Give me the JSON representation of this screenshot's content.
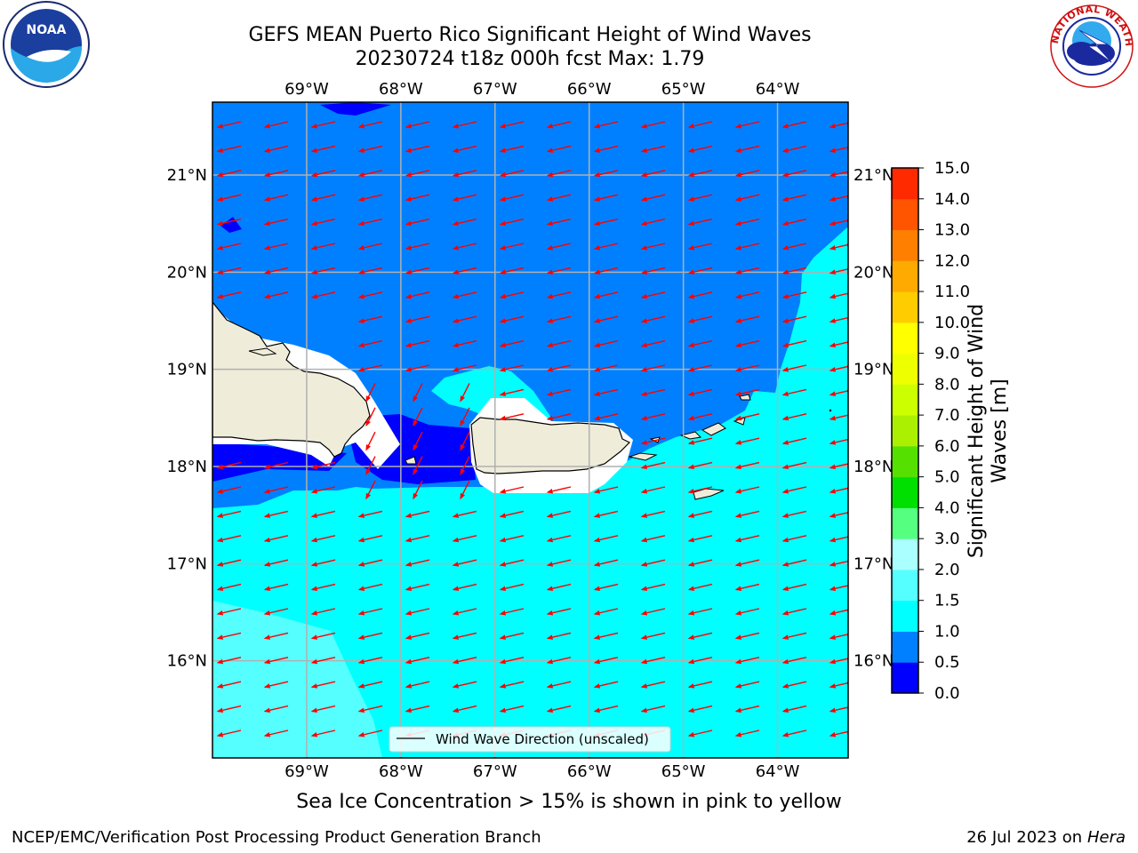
{
  "title": {
    "line1": "GEFS MEAN Puerto Rico Significant Height of Wind Waves",
    "line2": "20230724 t18z 000h fcst   Max: 1.79"
  },
  "map": {
    "lon_range": [
      -70.0,
      -63.25
    ],
    "lat_range": [
      15.0,
      21.75
    ],
    "lon_ticks": [
      {
        "value": -69,
        "label": "69°W"
      },
      {
        "value": -68,
        "label": "68°W"
      },
      {
        "value": -67,
        "label": "67°W"
      },
      {
        "value": -66,
        "label": "66°W"
      },
      {
        "value": -65,
        "label": "65°W"
      },
      {
        "value": -64,
        "label": "64°W"
      }
    ],
    "lat_ticks": [
      {
        "value": 21,
        "label": "21°N"
      },
      {
        "value": 20,
        "label": "20°N"
      },
      {
        "value": 19,
        "label": "19°N"
      },
      {
        "value": 18,
        "label": "18°N"
      },
      {
        "value": 17,
        "label": "17°N"
      },
      {
        "value": 16,
        "label": "16°N"
      }
    ],
    "legend_label": "Wind Wave Direction (unscaled)",
    "legend_position": "bottom-center",
    "arrow_color": "#ff0000",
    "land_color": "#efedda",
    "grid": true
  },
  "colorbar": {
    "label": "Significant Height of Wind Waves [m]",
    "label_line1": "Significant Height of Wind",
    "label_line2": "Waves [m]",
    "levels": [
      "0.0",
      "0.5",
      "1.0",
      "1.5",
      "2.0",
      "3.0",
      "4.0",
      "5.0",
      "6.0",
      "7.0",
      "8.0",
      "9.0",
      "10.0",
      "11.0",
      "12.0",
      "13.0",
      "14.0",
      "15.0"
    ],
    "colors": [
      "#0000ff",
      "#0080ff",
      "#00ffff",
      "#55ffff",
      "#aaffff",
      "#55ff80",
      "#00e000",
      "#55e000",
      "#aaf000",
      "#ccff00",
      "#eeff00",
      "#ffff00",
      "#ffcc00",
      "#ffaa00",
      "#ff8000",
      "#ff5500",
      "#ff2a00",
      "#ff0000"
    ]
  },
  "note": "Sea Ice Concentration > 15% is shown in pink to yellow",
  "footer": {
    "left": "NCEP/EMC/Verification Post Processing Product Generation Branch",
    "right_prefix": "26 Jul 2023 on ",
    "right_italic": "Hera"
  },
  "logos": {
    "noaa_text": "NOAA",
    "nws_text": "NATIONAL WEATHER SERVICE"
  }
}
